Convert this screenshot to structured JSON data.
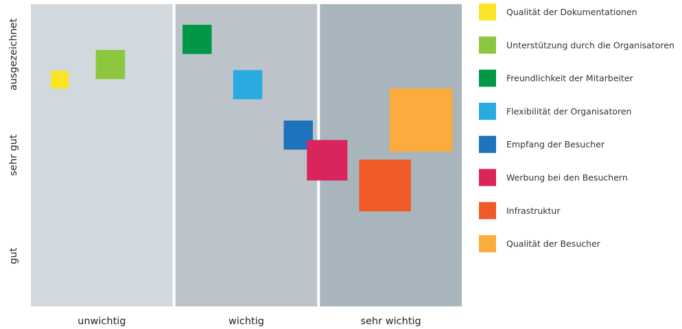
{
  "chart_data": {
    "type": "scatter",
    "marker": "square",
    "xlabel": "",
    "ylabel": "",
    "x_categories": [
      "unwichtig",
      "wichtig",
      "sehr  wichtig"
    ],
    "y_categories": [
      "gut",
      "sehr gut",
      "ausgezeichnet"
    ],
    "band_colors": [
      "#d1d9de",
      "#bcc4ca",
      "#a9b5bd"
    ],
    "grid": false,
    "legend_position": "right",
    "points": [
      {
        "name": "Qualität der Dokumentationen",
        "color": "#f9e425",
        "x": 0.2,
        "y": 2.25,
        "size": 1
      },
      {
        "name": "Unterstützung durch die Organisatoren",
        "color": "#8dc63f",
        "x": 0.55,
        "y": 2.4,
        "size": 2
      },
      {
        "name": "Freundlichkeit der Mitarbeiter",
        "color": "#009846",
        "x": 1.15,
        "y": 2.65,
        "size": 2
      },
      {
        "name": "Flexibilität der Organisatoren",
        "color": "#29abe2",
        "x": 1.5,
        "y": 2.2,
        "size": 2
      },
      {
        "name": "Empfang der Besucher",
        "color": "#1f72bc",
        "x": 1.85,
        "y": 1.7,
        "size": 2
      },
      {
        "name": "Werbung bei den Besuchern",
        "color": "#d9245c",
        "x": 2.05,
        "y": 1.45,
        "size": 3
      },
      {
        "name": "Infrastruktur",
        "color": "#f05a28",
        "x": 2.45,
        "y": 1.2,
        "size": 4
      },
      {
        "name": "Qualität der Besucher",
        "color": "#fbac3e",
        "x": 2.7,
        "y": 1.85,
        "size": 5
      }
    ]
  }
}
